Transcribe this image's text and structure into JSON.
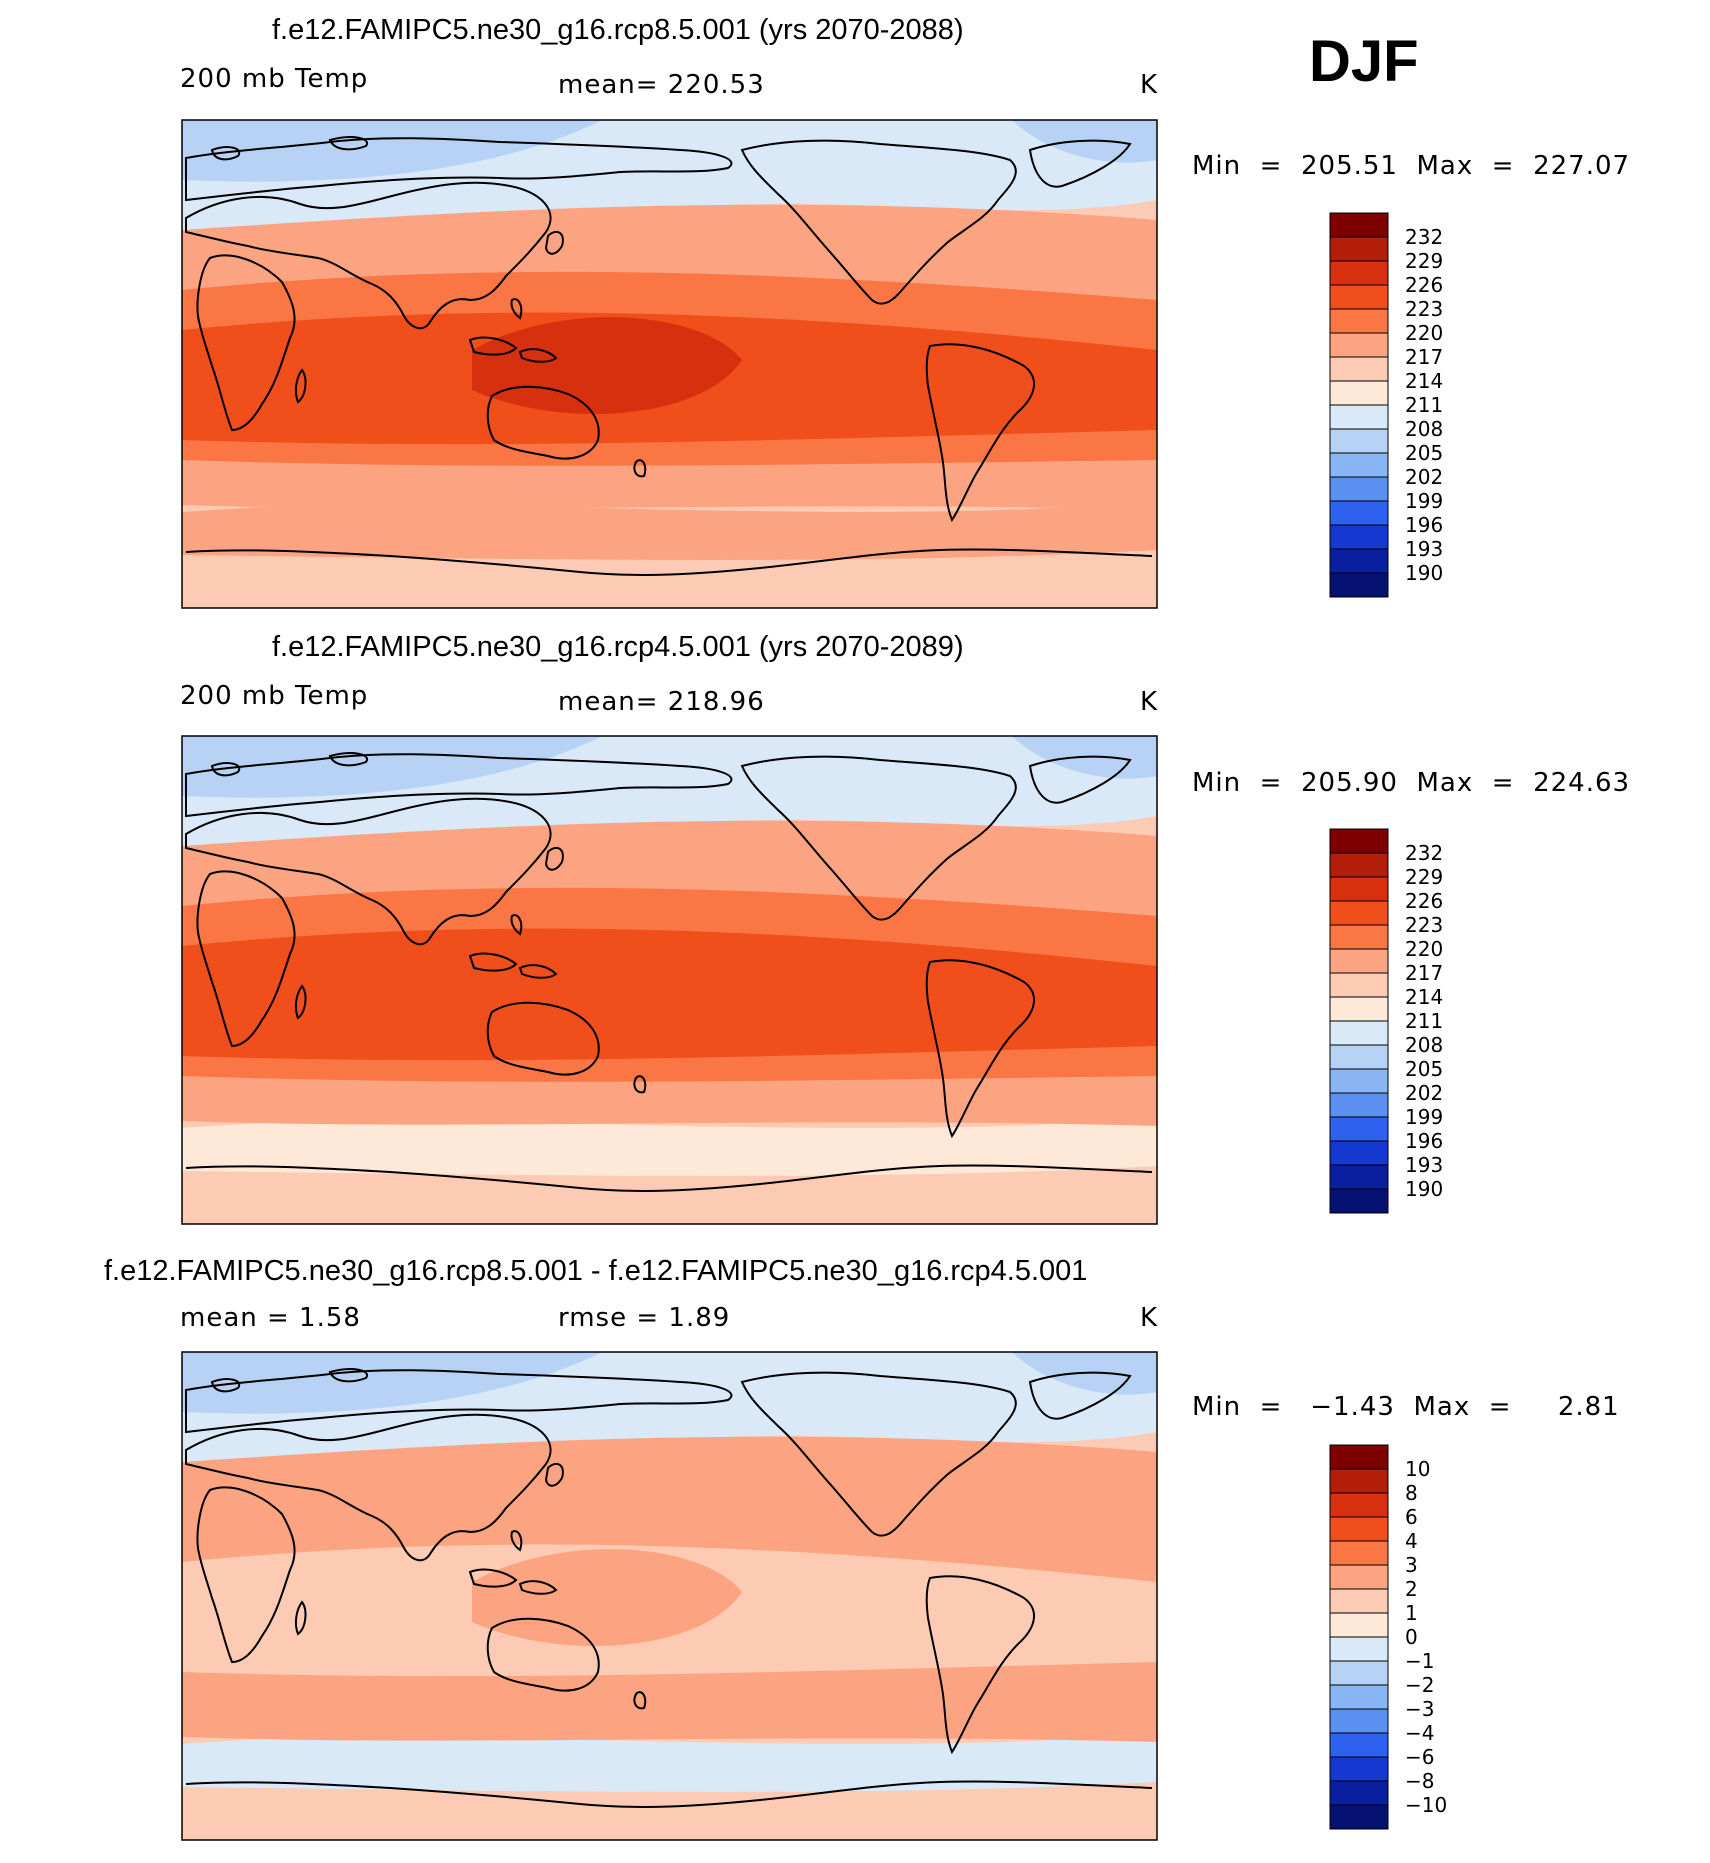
{
  "season": "DJF",
  "panels": [
    {
      "title": "f.e12.FAMIPC5.ne30_g16.rcp8.5.001 (yrs 2070-2088)",
      "left_label": "200 mb Temp",
      "center_label": "mean=  220.53",
      "units": "K",
      "min_max": "Min  =  205.51  Max  =  227.07",
      "colorbar": {
        "labels": [
          "232",
          "229",
          "226",
          "223",
          "220",
          "217",
          "214",
          "211",
          "208",
          "205",
          "202",
          "199",
          "196",
          "193",
          "190"
        ],
        "colors": [
          "#7f0000",
          "#b21e0a",
          "#d7300f",
          "#f04f1c",
          "#fa7745",
          "#fca482",
          "#fdcbb3",
          "#fee8d8",
          "#d9e9f8",
          "#b7d2f5",
          "#8ab6f3",
          "#5b8ff2",
          "#2e62ee",
          "#1539d0",
          "#0a1fa0",
          "#051271"
        ]
      },
      "fields": {
        "base": "#fdcbb3",
        "high_band": "#d9e9f8",
        "high_cap": "#b7d2f5",
        "warm1": "#fca482",
        "warm2": "#fa7745",
        "warm3": "#f04f1c",
        "core": "#d7300f",
        "south_band": "#fca482"
      }
    },
    {
      "title": "f.e12.FAMIPC5.ne30_g16.rcp4.5.001 (yrs 2070-2089)",
      "left_label": "200 mb Temp",
      "center_label": "mean=  218.96",
      "units": "K",
      "min_max": "Min  =  205.90  Max  =  224.63",
      "colorbar": {
        "labels": [
          "232",
          "229",
          "226",
          "223",
          "220",
          "217",
          "214",
          "211",
          "208",
          "205",
          "202",
          "199",
          "196",
          "193",
          "190"
        ],
        "colors": [
          "#7f0000",
          "#b21e0a",
          "#d7300f",
          "#f04f1c",
          "#fa7745",
          "#fca482",
          "#fdcbb3",
          "#fee8d8",
          "#d9e9f8",
          "#b7d2f5",
          "#8ab6f3",
          "#5b8ff2",
          "#2e62ee",
          "#1539d0",
          "#0a1fa0",
          "#051271"
        ]
      },
      "fields": {
        "base": "#fdcbb3",
        "high_band": "#d9e9f8",
        "high_cap": "#b7d2f5",
        "warm1": "#fca482",
        "warm2": "#fa7745",
        "warm3": "#f04f1c",
        "core": "#f04f1c",
        "south_band": "#fee8d8"
      }
    },
    {
      "title": "f.e12.FAMIPC5.ne30_g16.rcp8.5.001 - f.e12.FAMIPC5.ne30_g16.rcp4.5.001",
      "left_label": "mean =     1.58",
      "center_label": "rmse =     1.89",
      "units": "K",
      "min_max": "Min  =   −1.43  Max  =     2.81",
      "colorbar": {
        "labels": [
          "10",
          "8",
          "6",
          "4",
          "3",
          "2",
          "1",
          "0",
          "−1",
          "−2",
          "−3",
          "−4",
          "−6",
          "−8",
          "−10"
        ],
        "colors": [
          "#7f0000",
          "#b21e0a",
          "#d7300f",
          "#f04f1c",
          "#fa7745",
          "#fca482",
          "#fdcbb3",
          "#fee8d8",
          "#d9e9f8",
          "#b7d2f5",
          "#8ab6f3",
          "#5b8ff2",
          "#2e62ee",
          "#1539d0",
          "#0a1fa0",
          "#051271"
        ]
      },
      "fields": {
        "base": "#fdcbb3",
        "high_band": "#d9e9f8",
        "high_cap": "#b7d2f5",
        "warm1": "#fca482",
        "warm2": "#fca482",
        "warm3": "#fdcbb3",
        "core": "#fca482",
        "south_band": "#d9e9f8"
      }
    }
  ]
}
